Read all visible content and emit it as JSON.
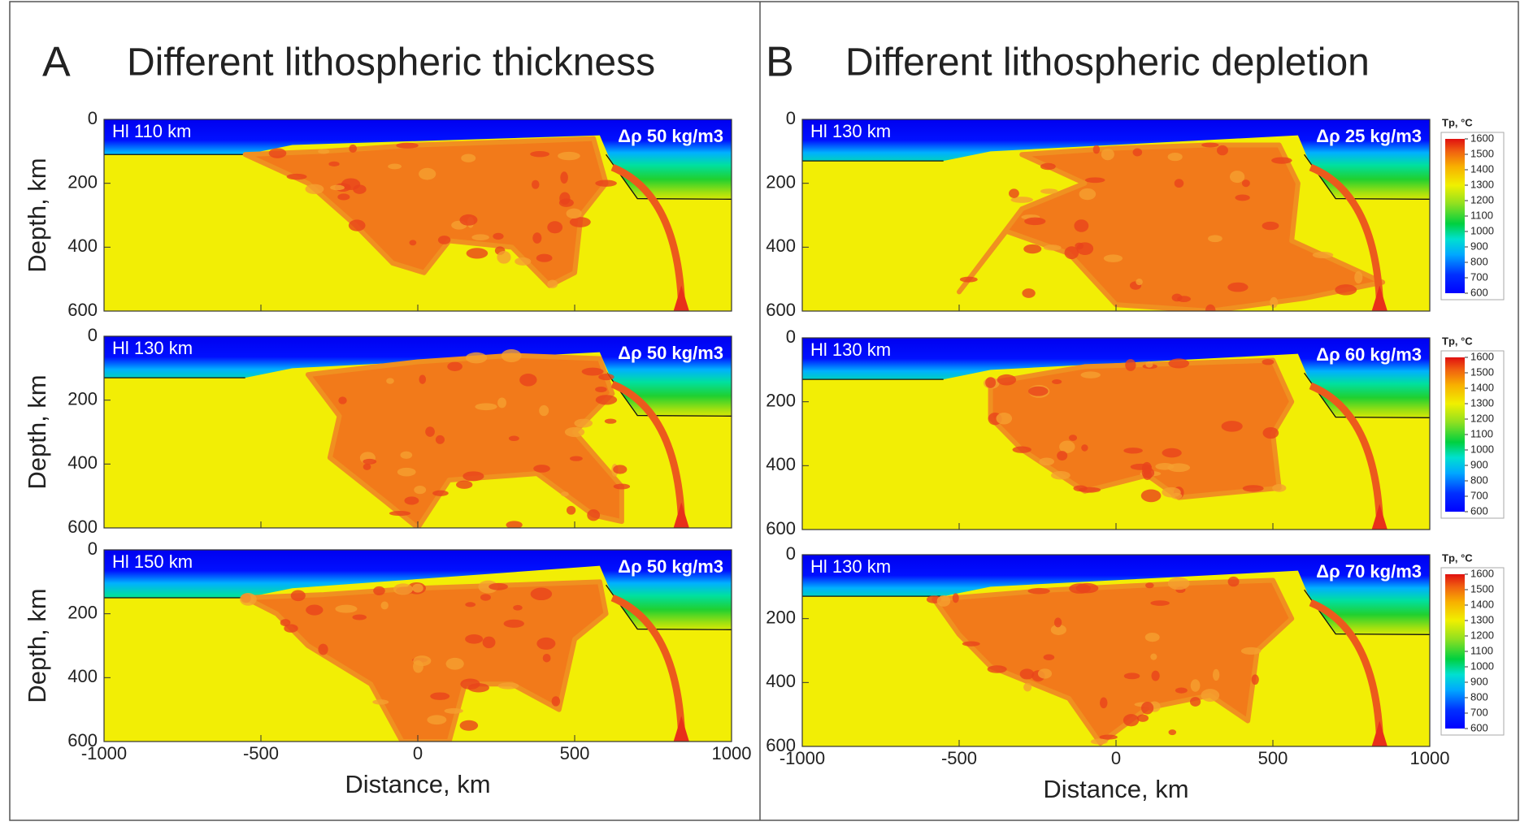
{
  "columns": [
    {
      "letter": "A",
      "title": "Different lithospheric thickness",
      "panels": [
        {
          "hl": "Hl 110 km",
          "drho": "Δρ 50 kg/m3"
        },
        {
          "hl": "Hl 130 km",
          "drho": "Δρ 50 kg/m3"
        },
        {
          "hl": "Hl 150 km",
          "drho": "Δρ 50 kg/m3"
        }
      ]
    },
    {
      "letter": "B",
      "title": "Different lithospheric depletion",
      "panels": [
        {
          "hl": "Hl 130 km",
          "drho": "Δρ 25 kg/m3"
        },
        {
          "hl": "Hl 130 km",
          "drho": "Δρ 60 kg/m3"
        },
        {
          "hl": "Hl 130 km",
          "drho": "Δρ 70 kg/m3"
        }
      ]
    }
  ],
  "axes": {
    "xlabel": "Distance, km",
    "ylabel": "Depth, km",
    "xlim": [
      -1000,
      1000
    ],
    "xticks": [
      -1000,
      -500,
      0,
      500,
      1000
    ],
    "ylim": [
      0,
      600
    ],
    "yticks": [
      0,
      200,
      400,
      600
    ]
  },
  "colorbar": {
    "title": "Tp, °C",
    "lim": [
      600,
      1600
    ],
    "ticks": [
      600,
      700,
      800,
      900,
      1000,
      1100,
      1200,
      1300,
      1400,
      1500,
      1600
    ]
  }
}
